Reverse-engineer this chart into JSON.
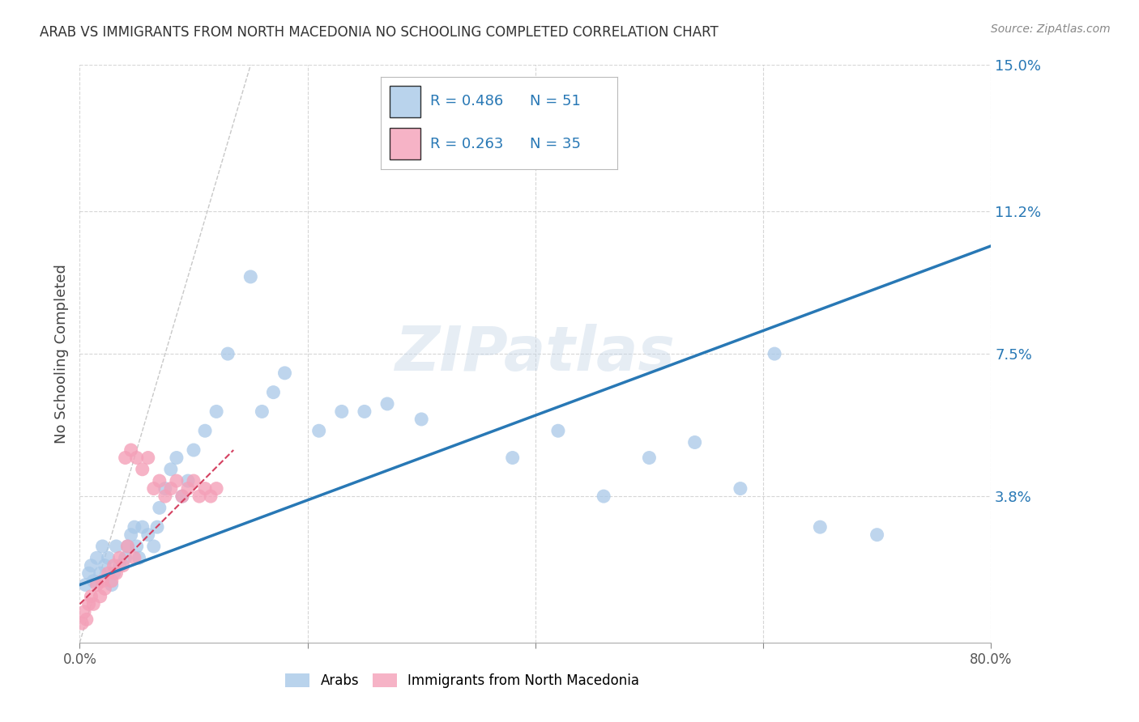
{
  "title": "ARAB VS IMMIGRANTS FROM NORTH MACEDONIA NO SCHOOLING COMPLETED CORRELATION CHART",
  "source": "Source: ZipAtlas.com",
  "ylabel": "No Schooling Completed",
  "xlim": [
    0,
    0.8
  ],
  "ylim": [
    0,
    0.15
  ],
  "yticks": [
    0.038,
    0.075,
    0.112,
    0.15
  ],
  "ytick_labels": [
    "3.8%",
    "7.5%",
    "11.2%",
    "15.0%"
  ],
  "xticks": [
    0.0,
    0.2,
    0.4,
    0.6,
    0.8
  ],
  "xtick_labels": [
    "0.0%",
    "",
    "",
    "",
    "80.0%"
  ],
  "blue_scatter_color": "#a8c8e8",
  "pink_scatter_color": "#f4a0b8",
  "blue_line_color": "#2878b5",
  "pink_line_color": "#d44060",
  "legend_blue_R": "R = 0.486",
  "legend_blue_N": "N = 51",
  "legend_pink_R": "R = 0.263",
  "legend_pink_N": "N = 35",
  "watermark": "ZIPatlas",
  "legend_label_blue": "Arabs",
  "legend_label_pink": "Immigrants from North Macedonia",
  "blue_scatter_x": [
    0.005,
    0.008,
    0.01,
    0.012,
    0.015,
    0.018,
    0.02,
    0.022,
    0.025,
    0.028,
    0.03,
    0.032,
    0.035,
    0.04,
    0.042,
    0.045,
    0.048,
    0.05,
    0.052,
    0.055,
    0.06,
    0.065,
    0.068,
    0.07,
    0.075,
    0.08,
    0.085,
    0.09,
    0.095,
    0.1,
    0.11,
    0.12,
    0.13,
    0.15,
    0.16,
    0.17,
    0.18,
    0.21,
    0.23,
    0.25,
    0.27,
    0.3,
    0.38,
    0.42,
    0.46,
    0.5,
    0.54,
    0.58,
    0.61,
    0.65,
    0.7
  ],
  "blue_scatter_y": [
    0.015,
    0.018,
    0.02,
    0.016,
    0.022,
    0.018,
    0.025,
    0.02,
    0.022,
    0.015,
    0.018,
    0.025,
    0.02,
    0.022,
    0.025,
    0.028,
    0.03,
    0.025,
    0.022,
    0.03,
    0.028,
    0.025,
    0.03,
    0.035,
    0.04,
    0.045,
    0.048,
    0.038,
    0.042,
    0.05,
    0.055,
    0.06,
    0.075,
    0.095,
    0.06,
    0.065,
    0.07,
    0.055,
    0.06,
    0.06,
    0.062,
    0.058,
    0.048,
    0.055,
    0.038,
    0.048,
    0.052,
    0.04,
    0.075,
    0.03,
    0.028
  ],
  "pink_scatter_x": [
    0.002,
    0.004,
    0.006,
    0.008,
    0.01,
    0.012,
    0.015,
    0.018,
    0.02,
    0.022,
    0.025,
    0.028,
    0.03,
    0.032,
    0.035,
    0.038,
    0.04,
    0.042,
    0.045,
    0.048,
    0.05,
    0.055,
    0.06,
    0.065,
    0.07,
    0.075,
    0.08,
    0.085,
    0.09,
    0.095,
    0.1,
    0.105,
    0.11,
    0.115,
    0.12
  ],
  "pink_scatter_y": [
    0.005,
    0.008,
    0.006,
    0.01,
    0.012,
    0.01,
    0.015,
    0.012,
    0.016,
    0.014,
    0.018,
    0.016,
    0.02,
    0.018,
    0.022,
    0.02,
    0.048,
    0.025,
    0.05,
    0.022,
    0.048,
    0.045,
    0.048,
    0.04,
    0.042,
    0.038,
    0.04,
    0.042,
    0.038,
    0.04,
    0.042,
    0.038,
    0.04,
    0.038,
    0.04
  ],
  "blue_line_x0": 0.0,
  "blue_line_x1": 0.8,
  "blue_line_y0": 0.015,
  "blue_line_y1": 0.103,
  "pink_line_x0": 0.0,
  "pink_line_x1": 0.135,
  "pink_line_y0": 0.01,
  "pink_line_y1": 0.05,
  "ref_line_x0": 0.0,
  "ref_line_x1": 0.15,
  "ref_line_y0": 0.0,
  "ref_line_y1": 0.15
}
